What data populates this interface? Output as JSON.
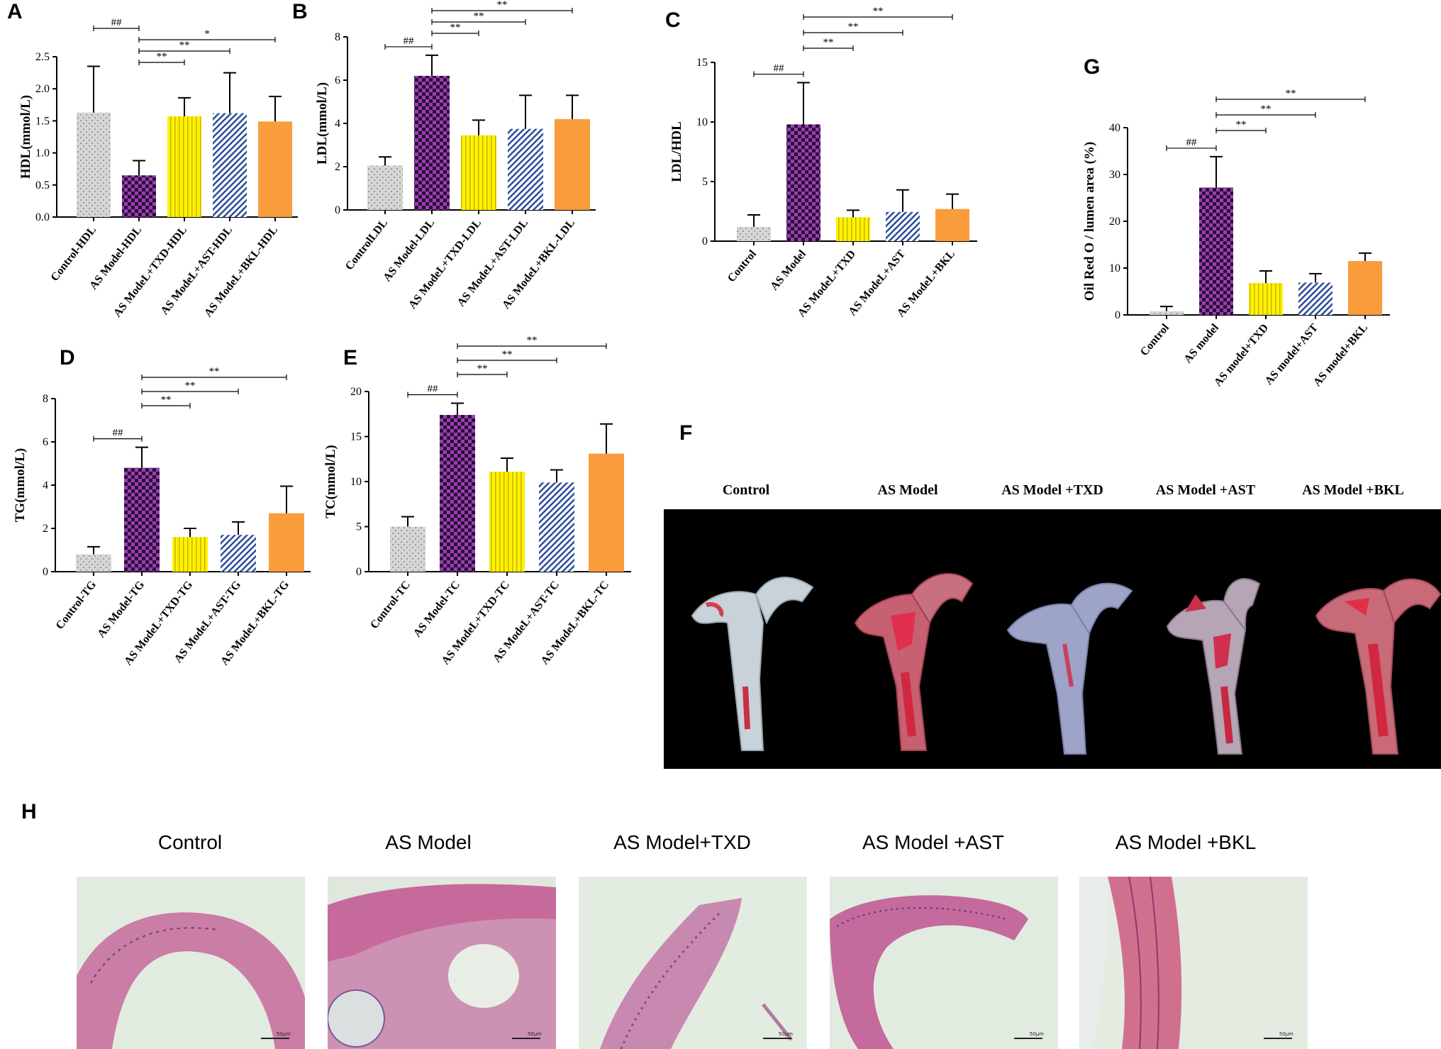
{
  "panels": {
    "a": "A",
    "b": "B",
    "c": "C",
    "d": "D",
    "e": "E",
    "f": "F",
    "g": "G",
    "h": "H"
  },
  "colors": {
    "control": "#d3d3d3",
    "model": "#7a2f8c",
    "txd": "#ffee1a",
    "ast": "#2f4f9a",
    "bkl": "#f79b3c"
  },
  "chart_data": [
    {
      "id": "A",
      "type": "bar",
      "ylabel": "HDL(mmol/L)",
      "ylim": [
        0,
        2.5
      ],
      "yticks": [
        "0.0",
        "0.5",
        "1.0",
        "1.5",
        "2.0",
        "2.5"
      ],
      "categories": [
        "Control-HDL",
        "AS Model-HDL",
        "AS ModeL+TXD-HDL",
        "AS ModeL+AST-HDL",
        "AS ModeL+BKL-HDL"
      ],
      "values": [
        1.63,
        0.65,
        1.57,
        1.62,
        1.49
      ],
      "errors": [
        0.72,
        0.23,
        0.29,
        0.63,
        0.39
      ],
      "significance": [
        {
          "from": 0,
          "to": 1,
          "label": "##"
        },
        {
          "from": 1,
          "to": 2,
          "label": "**"
        },
        {
          "from": 1,
          "to": 3,
          "label": "**"
        },
        {
          "from": 1,
          "to": 4,
          "label": "*"
        }
      ]
    },
    {
      "id": "B",
      "type": "bar",
      "ylabel": "LDL(mmol/L)",
      "ylim": [
        0,
        8
      ],
      "yticks": [
        "0",
        "2",
        "4",
        "6",
        "8"
      ],
      "categories": [
        "ControlLDL",
        "AS Model-LDL",
        "AS ModeL+TXD-LDL",
        "AS ModeL+AST-LDL",
        "AS ModeL+BKL-LDL"
      ],
      "values": [
        2.05,
        6.2,
        3.45,
        3.75,
        4.2
      ],
      "errors": [
        0.4,
        0.95,
        0.7,
        1.55,
        1.1
      ],
      "significance": [
        {
          "from": 0,
          "to": 1,
          "label": "##"
        },
        {
          "from": 1,
          "to": 2,
          "label": "**"
        },
        {
          "from": 1,
          "to": 3,
          "label": "**"
        },
        {
          "from": 1,
          "to": 4,
          "label": "**"
        }
      ]
    },
    {
      "id": "C",
      "type": "bar",
      "ylabel": "LDL/HDL",
      "ylim": [
        0,
        15
      ],
      "yticks": [
        "0",
        "5",
        "10",
        "15"
      ],
      "categories": [
        "Control",
        "AS Model",
        "AS ModeL+TXD",
        "AS ModeL+AST",
        "AS ModeL+BKL"
      ],
      "values": [
        1.2,
        9.8,
        2.0,
        2.45,
        2.7
      ],
      "errors": [
        1.0,
        3.5,
        0.6,
        1.85,
        1.25
      ],
      "significance": [
        {
          "from": 0,
          "to": 1,
          "label": "##"
        },
        {
          "from": 1,
          "to": 2,
          "label": "**"
        },
        {
          "from": 1,
          "to": 3,
          "label": "**"
        },
        {
          "from": 1,
          "to": 4,
          "label": "**"
        }
      ]
    },
    {
      "id": "D",
      "type": "bar",
      "ylabel": "TG(mmol/L)",
      "ylim": [
        0,
        8
      ],
      "yticks": [
        "0",
        "2",
        "4",
        "6",
        "8"
      ],
      "categories": [
        "Control-TG",
        "AS Model-TG",
        "AS ModeL+TXD-TG",
        "AS ModeL+AST-TG",
        "AS ModeL+BKL-TG"
      ],
      "values": [
        0.8,
        4.8,
        1.6,
        1.7,
        2.7
      ],
      "errors": [
        0.35,
        0.95,
        0.4,
        0.6,
        1.25
      ],
      "significance": [
        {
          "from": 0,
          "to": 1,
          "label": "##"
        },
        {
          "from": 1,
          "to": 2,
          "label": "**"
        },
        {
          "from": 1,
          "to": 3,
          "label": "**"
        },
        {
          "from": 1,
          "to": 4,
          "label": "**"
        }
      ]
    },
    {
      "id": "E",
      "type": "bar",
      "ylabel": "TC(mmol/L)",
      "ylim": [
        0,
        20
      ],
      "yticks": [
        "0",
        "5",
        "10",
        "15",
        "20"
      ],
      "categories": [
        "Control-TC",
        "AS Model-TC",
        "AS ModeL+TXD-TC",
        "AS ModeL+AST-TC",
        "AS ModeL+BKL-TC"
      ],
      "values": [
        5.0,
        17.4,
        11.1,
        9.9,
        13.1
      ],
      "errors": [
        1.1,
        1.3,
        1.5,
        1.4,
        3.3
      ],
      "significance": [
        {
          "from": 0,
          "to": 1,
          "label": "##"
        },
        {
          "from": 1,
          "to": 2,
          "label": "**"
        },
        {
          "from": 1,
          "to": 3,
          "label": "**"
        },
        {
          "from": 1,
          "to": 4,
          "label": "**"
        }
      ]
    },
    {
      "id": "G",
      "type": "bar",
      "ylabel": "Oil Red O / lumen area (%)",
      "ylim": [
        0,
        40
      ],
      "yticks": [
        "0",
        "10",
        "20",
        "30",
        "40"
      ],
      "categories": [
        "Control",
        "AS model",
        "AS model+TXD",
        "AS model+AST",
        "AS model+BKL"
      ],
      "values": [
        0.8,
        27.2,
        6.8,
        6.9,
        11.5
      ],
      "errors": [
        1.0,
        6.6,
        2.6,
        1.9,
        1.7
      ],
      "significance": [
        {
          "from": 0,
          "to": 1,
          "label": "##"
        },
        {
          "from": 1,
          "to": 2,
          "label": "**"
        },
        {
          "from": 1,
          "to": 3,
          "label": "**"
        },
        {
          "from": 1,
          "to": 4,
          "label": "**"
        }
      ]
    }
  ],
  "photo_labels": [
    "Control",
    "AS Model",
    "AS Model +TXD",
    "AS Model +AST",
    "AS Model +BKL"
  ],
  "he_labels": [
    "Control",
    "AS Model",
    "AS Model+TXD",
    "AS Model +AST",
    "AS Model +BKL"
  ],
  "scale_bar": "50μm"
}
